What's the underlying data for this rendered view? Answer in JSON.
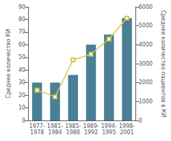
{
  "chart_data": {
    "type": "bar",
    "categories": [
      "1977-\n1978",
      "1981-\n1984",
      "1985-\n1988",
      "1989-\n1992",
      "1994-\n1995",
      "1998-\n2001"
    ],
    "ylabel": "Среднее количество КИ",
    "y2label": "Среднее количество пациентов в КИ",
    "ylim": [
      0,
      90
    ],
    "yticks": [
      0,
      10,
      20,
      30,
      40,
      50,
      60,
      70,
      80,
      90
    ],
    "y2lim": [
      0,
      6000
    ],
    "y2ticks": [
      0,
      1000,
      2000,
      3000,
      4000,
      5000,
      6000
    ],
    "grid": false,
    "series": [
      {
        "type": "bar",
        "color": "#4a7f96",
        "values": [
          30,
          30,
          36,
          60,
          68,
          81
        ]
      },
      {
        "type": "line",
        "axis": "y2",
        "color": "#d4c84a",
        "marker": "square",
        "values": [
          1600,
          1250,
          3200,
          3500,
          4300,
          5400
        ]
      }
    ]
  }
}
